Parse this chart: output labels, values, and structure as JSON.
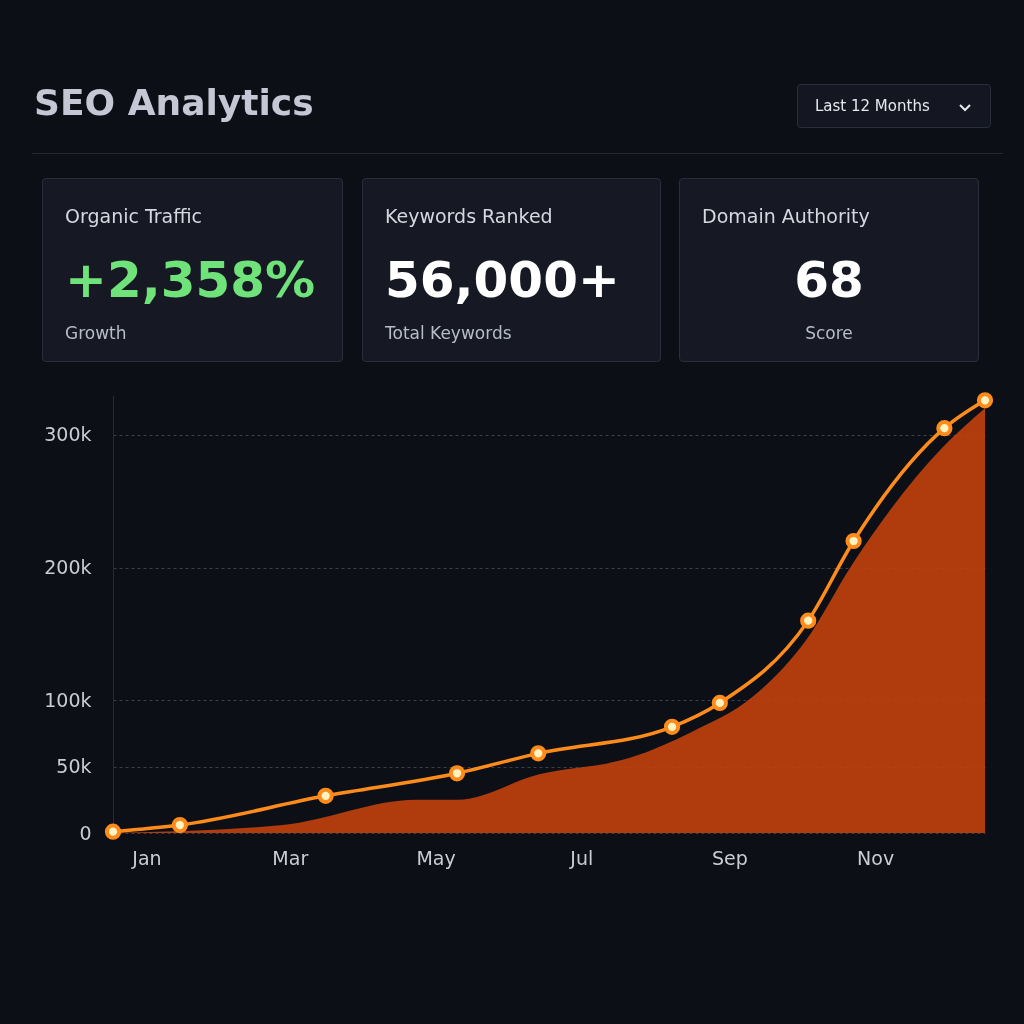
{
  "chart_data": [
    {
      "type": "other",
      "title": "SEO Analytics",
      "annotations": [
        "Last 12 Months",
        "Organic Traffic",
        "+2,358%",
        "Growth",
        "Keywords Ranked",
        "56,000+",
        "Total Keywords",
        "Domain Authority",
        "68",
        "Score"
      ]
    },
    {
      "type": "line",
      "xlim": [
        "--01-01",
        "--12-31"
      ],
      "xticks": [
        {
          "value": "--01-15",
          "label": "Jan"
        },
        {
          "value": "--03-15",
          "label": "Mar"
        },
        {
          "value": "--05-15",
          "label": "May"
        },
        {
          "value": "--07-15",
          "label": "Jul"
        },
        {
          "value": "--09-15",
          "label": "Sep"
        },
        {
          "value": "--11-15",
          "label": "Nov"
        }
      ],
      "ylim": [
        0,
        330000
      ],
      "yticks": [
        0,
        {
          "value": 50000,
          "label": "50k"
        },
        {
          "value": 100000,
          "label": "100k"
        },
        {
          "value": 200000,
          "label": "200k"
        },
        {
          "value": 300000,
          "label": "300k"
        }
      ],
      "grid": "y",
      "line_style": "solid",
      "series": [
        {
          "type": "area",
          "color": "#c2410c",
          "x": [
            "--01-01",
            "--03-12",
            "--05-07",
            "--05-24",
            "--06-27",
            "--08-05",
            "--08-30",
            "--09-25",
            "--10-17",
            "--11-06",
            "--12-13",
            "--12-31"
          ],
          "values": [
            0,
            6000,
            25000,
            25000,
            44000,
            57000,
            76000,
            103000,
            145000,
            204000,
            290000,
            320000
          ]
        },
        {
          "type": "line",
          "color": "#ff8c1a",
          "marker": "circle",
          "x": [
            "--01-01",
            "--01-29",
            "--03-30",
            "--05-24",
            "--06-27",
            "--08-22",
            "--09-11",
            "--10-18",
            "--11-06",
            "--12-14",
            "--12-31"
          ],
          "values": [
            1000,
            6000,
            28000,
            45000,
            60000,
            80000,
            98000,
            160000,
            220000,
            305000,
            326000
          ]
        }
      ]
    }
  ]
}
